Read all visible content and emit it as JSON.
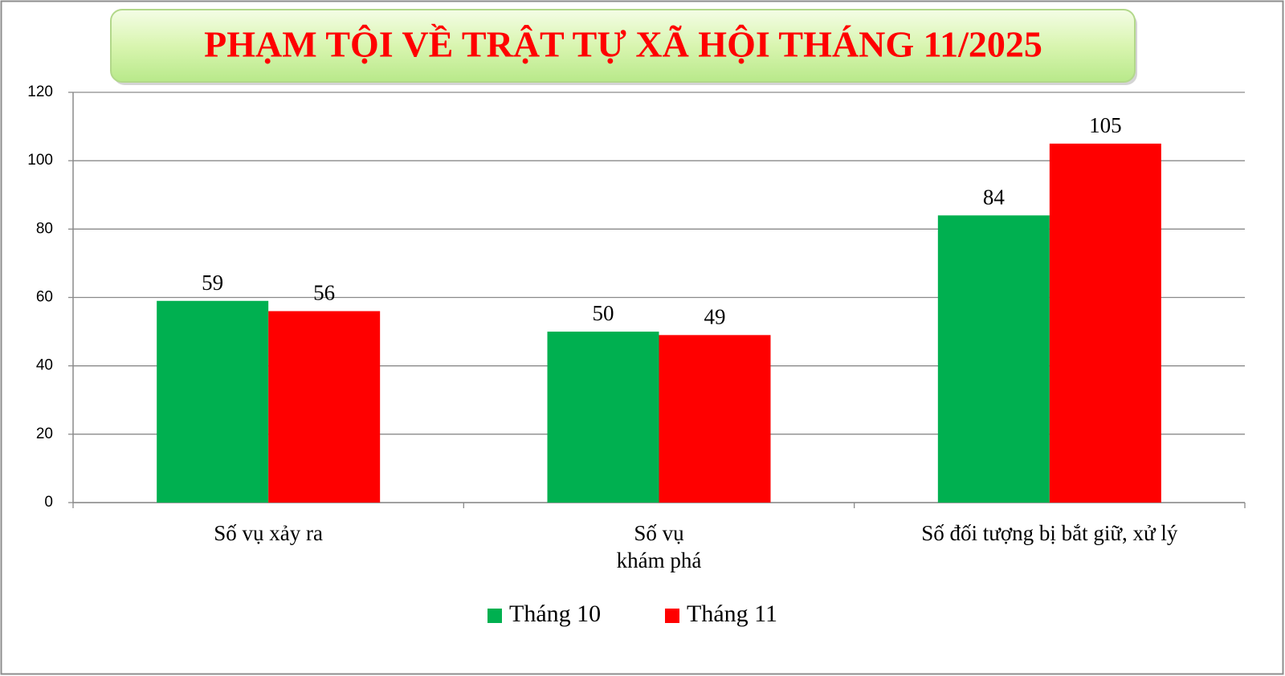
{
  "chart_data": {
    "type": "bar",
    "title": "PHẠM TỘI VỀ TRẬT TỰ XÃ HỘI THÁNG 11/2025",
    "categories": [
      "Số vụ xảy ra",
      "Số vụ\nkhám phá",
      "Số đối tượng bị bắt giữ, xử lý"
    ],
    "series": [
      {
        "name": "Tháng 10",
        "color": "#00b050",
        "values": [
          59,
          50,
          84
        ]
      },
      {
        "name": "Tháng 11",
        "color": "#ff0000",
        "values": [
          56,
          49,
          105
        ]
      }
    ],
    "ylim": [
      0,
      120
    ],
    "yticks": [
      0,
      20,
      40,
      60,
      80,
      100,
      120
    ],
    "grid": true,
    "legend": "bottom"
  }
}
